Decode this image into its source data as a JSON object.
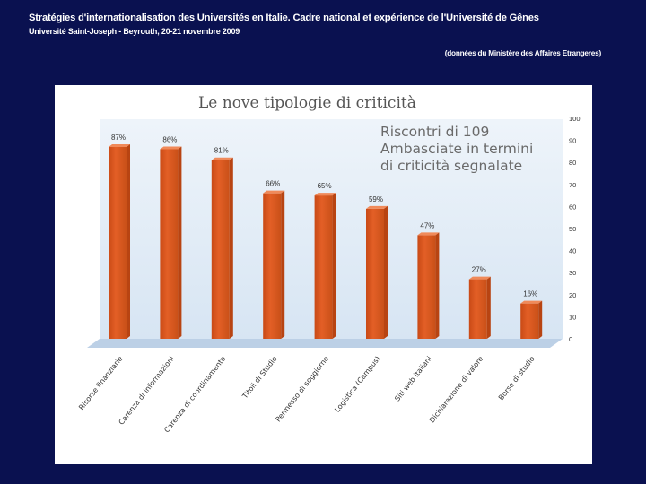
{
  "header": {
    "title": "Stratégies d'internationalisation des Universités en Italie. Cadre national et expérience de l'Université de Gênes",
    "subtitle": "Université Saint-Joseph - Beyrouth, 20-21 novembre 2009",
    "source": "(données du Ministère des Affaires Etrangeres)"
  },
  "colors": {
    "background": "#0a1150",
    "bar": "#e35f26",
    "bar_top": "#f08a5a",
    "plot_bg": "#d7e5f3",
    "title_text": "#555555",
    "annotation_text": "#6a6a6a"
  },
  "chart_data": {
    "type": "bar",
    "title": "Le nove tipologie di criticità",
    "annotation": [
      "Riscontri di 109",
      "Ambasciate  in termini",
      "di criticità segnalate"
    ],
    "categories": [
      "Risorse finanziarie",
      "Carenza di informazioni",
      "Carenza di coordinamento",
      "Titoli di Studio",
      "Permesso di soggiorno",
      "Logistica (Campus)",
      "Siti web italiani",
      "Dichiarazione di valore",
      "Borse di studio"
    ],
    "values": [
      87,
      86,
      81,
      66,
      65,
      59,
      47,
      27,
      16
    ],
    "data_labels": [
      "87%",
      "86%",
      "81%",
      "66%",
      "65%",
      "59%",
      "47%",
      "27%",
      "16%"
    ],
    "ylim": [
      0,
      100
    ],
    "yticks": [
      0,
      10,
      20,
      30,
      40,
      50,
      60,
      70,
      80,
      90,
      100
    ],
    "y_axis_side": "right",
    "grid": false,
    "legend": "none"
  }
}
